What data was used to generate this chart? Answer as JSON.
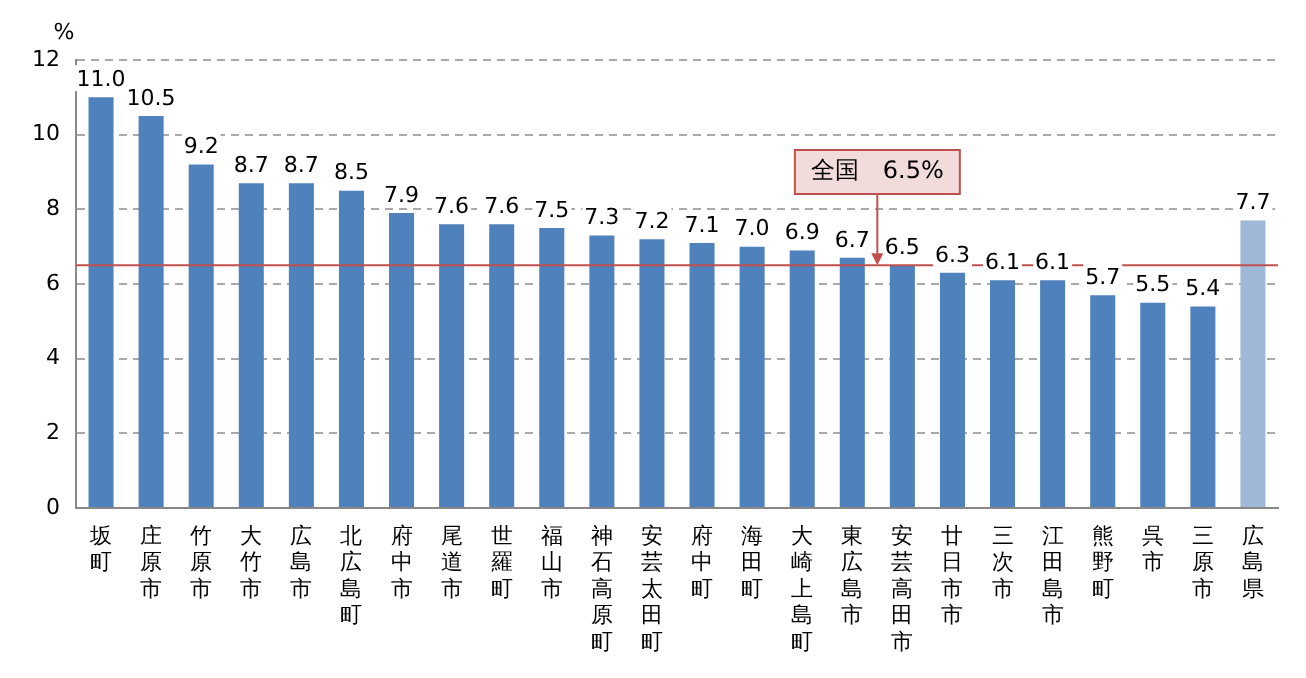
{
  "chart_data": {
    "type": "bar",
    "ylabel": "%",
    "categories": [
      "坂町",
      "庄原市",
      "竹原市",
      "大竹市",
      "広島市",
      "北広島町",
      "府中市",
      "尾道市",
      "世羅町",
      "福山市",
      "神石高原町",
      "安芸太田町",
      "府中町",
      "海田町",
      "大崎上島町",
      "東広島市",
      "安芸高田市",
      "廿日市市",
      "三次市",
      "江田島市",
      "熊野町",
      "呉市",
      "三原市",
      "広島県"
    ],
    "values": [
      11.0,
      10.5,
      9.2,
      8.7,
      8.7,
      8.5,
      7.9,
      7.6,
      7.6,
      7.5,
      7.3,
      7.2,
      7.1,
      7.0,
      6.9,
      6.7,
      6.5,
      6.3,
      6.1,
      6.1,
      5.7,
      5.5,
      5.4,
      7.7
    ],
    "colors": [
      "#4f81bd",
      "#4f81bd",
      "#4f81bd",
      "#4f81bd",
      "#4f81bd",
      "#4f81bd",
      "#4f81bd",
      "#4f81bd",
      "#4f81bd",
      "#4f81bd",
      "#4f81bd",
      "#4f81bd",
      "#4f81bd",
      "#4f81bd",
      "#4f81bd",
      "#4f81bd",
      "#4f81bd",
      "#4f81bd",
      "#4f81bd",
      "#4f81bd",
      "#4f81bd",
      "#4f81bd",
      "#4f81bd",
      "#9fb8d8"
    ],
    "value_labels": [
      "11.0",
      "10.5",
      "9.2",
      "8.7",
      "8.7",
      "8.5",
      "7.9",
      "7.6",
      "7.6",
      "7.5",
      "7.3",
      "7.2",
      "7.1",
      "7.0",
      "6.9",
      "6.7",
      "6.5",
      "6.3",
      "6.1",
      "6.1",
      "5.7",
      "5.5",
      "5.4",
      "7.7"
    ],
    "ylim": [
      0,
      12
    ],
    "yticks": [
      0,
      2,
      4,
      6,
      8,
      10,
      12
    ],
    "grid": "y",
    "ref_lines": [
      {
        "axis": "y",
        "value": 6.5,
        "label": "全国　6.5%",
        "color": "#c0504d"
      }
    ]
  }
}
